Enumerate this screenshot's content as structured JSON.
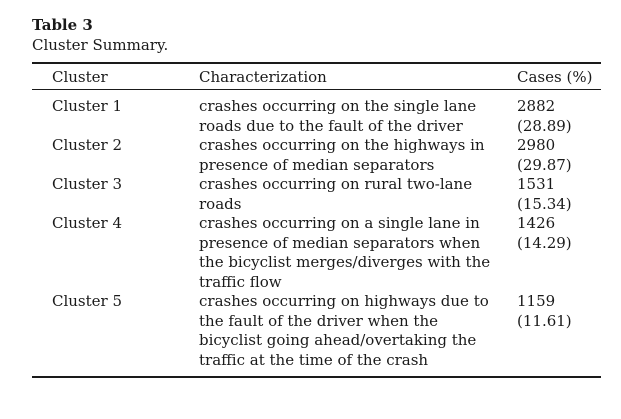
{
  "table": {
    "number": "Table 3",
    "caption": "Cluster Summary.",
    "headers": {
      "cluster": "Cluster",
      "characterization": "Characterization",
      "cases": "Cases (%)"
    },
    "rows": [
      {
        "cluster": "Cluster 1",
        "characterization": "crashes occurring on the single lane roads due to the fault of the driver",
        "cases": "2882 (28.89)"
      },
      {
        "cluster": "Cluster 2",
        "characterization": "crashes occurring on the highways in presence of median separators",
        "cases": "2980 (29.87)"
      },
      {
        "cluster": "Cluster 3",
        "characterization": "crashes occurring on rural two-lane roads",
        "cases": "1531 (15.34)"
      },
      {
        "cluster": "Cluster 4",
        "characterization": "crashes occurring on a single lane in presence of median separators when the bicyclist merges/diverges with the traffic flow",
        "cases": "1426 (14.29)"
      },
      {
        "cluster": "Cluster 5",
        "characterization": "crashes occurring on highways due to the fault of the driver when the bicyclist going ahead/overtaking the traffic at the time of the crash",
        "cases": "1159 (11.61)"
      }
    ]
  }
}
